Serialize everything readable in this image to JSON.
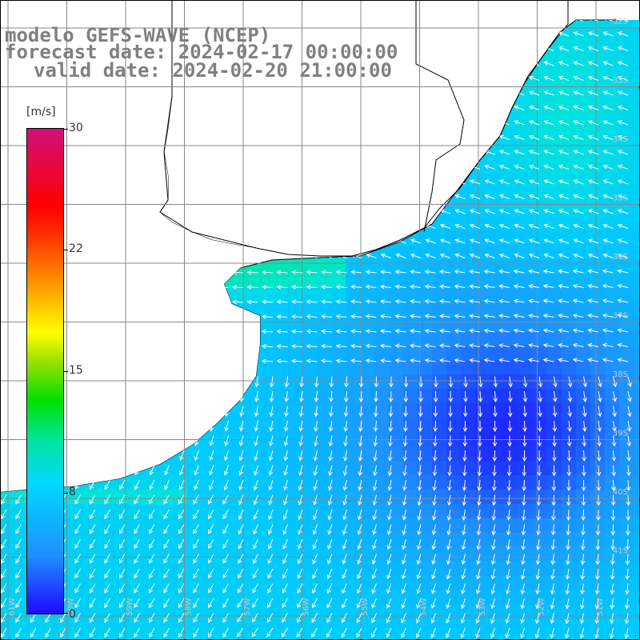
{
  "title": {
    "line1": "modelo GEFS-WAVE (NCEP)",
    "line2": "forecast date: 2024-02-17 00:00:00",
    "line3": "valid date: 2024-02-20 21:00:00"
  },
  "colorbar": {
    "unit": "[m/s]",
    "ticks": [
      "30",
      "22",
      "15",
      "8",
      "0"
    ],
    "tick_values": [
      30,
      22,
      15,
      8,
      0
    ],
    "range": [
      0,
      30
    ]
  },
  "map": {
    "variable": "wind speed with direction arrows",
    "right_lat_labels": [
      "32S",
      "33S",
      "34S",
      "35S",
      "36S",
      "37S",
      "38S",
      "39S",
      "40S",
      "41S"
    ],
    "bottom_lon_labels": [
      "61W",
      "60W",
      "59W",
      "58W",
      "57W",
      "56W",
      "55W",
      "54W",
      "53W",
      "52W",
      "51W"
    ],
    "colors": {
      "land": "#ffffff",
      "coastline": "#000000",
      "grid": "#888888",
      "arrow": "#ffffff"
    }
  }
}
